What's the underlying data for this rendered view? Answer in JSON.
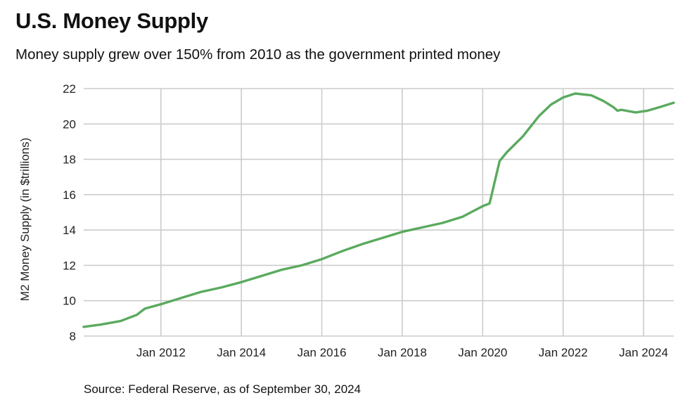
{
  "header": {
    "title": "U.S. Money Supply",
    "subtitle": "Money supply grew over 150% from 2010 as the government printed money"
  },
  "footer": {
    "source": "Source: Federal Reserve, as of September 30, 2024"
  },
  "colors": {
    "line": "#5aaa5e",
    "grid": "#cccccc"
  },
  "chart_data": {
    "type": "line",
    "title": "U.S. Money Supply",
    "subtitle": "Money supply grew over 150% from 2010 as the government printed money",
    "xlabel": "",
    "ylabel": "M2 Money Supply (in $trillions)",
    "ylim": [
      8,
      22
    ],
    "xlim": [
      2010.08,
      2024.75
    ],
    "yticks": [
      8,
      10,
      12,
      14,
      16,
      18,
      20,
      22
    ],
    "xticks": [
      {
        "value": 2012.0,
        "label": "Jan 2012"
      },
      {
        "value": 2014.0,
        "label": "Jan 2014"
      },
      {
        "value": 2016.0,
        "label": "Jan 2016"
      },
      {
        "value": 2018.0,
        "label": "Jan 2018"
      },
      {
        "value": 2020.0,
        "label": "Jan 2020"
      },
      {
        "value": 2022.0,
        "label": "Jan 2022"
      },
      {
        "value": 2024.0,
        "label": "Jan 2024"
      }
    ],
    "grid": true,
    "legend": "none",
    "series": [
      {
        "name": "M2 Money Supply",
        "x": [
          2010.08,
          2010.5,
          2011.0,
          2011.4,
          2011.6,
          2012.0,
          2012.5,
          2013.0,
          2013.5,
          2014.0,
          2014.5,
          2015.0,
          2015.5,
          2016.0,
          2016.5,
          2017.0,
          2017.5,
          2018.0,
          2018.5,
          2019.0,
          2019.5,
          2020.0,
          2020.17,
          2020.42,
          2020.6,
          2021.0,
          2021.4,
          2021.7,
          2022.0,
          2022.3,
          2022.7,
          2023.0,
          2023.25,
          2023.35,
          2023.45,
          2023.8,
          2024.1,
          2024.4,
          2024.75
        ],
        "values": [
          8.52,
          8.65,
          8.85,
          9.2,
          9.55,
          9.8,
          10.15,
          10.5,
          10.75,
          11.05,
          11.4,
          11.75,
          12.0,
          12.35,
          12.8,
          13.2,
          13.55,
          13.9,
          14.15,
          14.4,
          14.75,
          15.35,
          15.5,
          17.9,
          18.4,
          19.3,
          20.45,
          21.1,
          21.5,
          21.72,
          21.62,
          21.3,
          20.95,
          20.75,
          20.8,
          20.65,
          20.75,
          20.95,
          21.2
        ]
      }
    ]
  }
}
